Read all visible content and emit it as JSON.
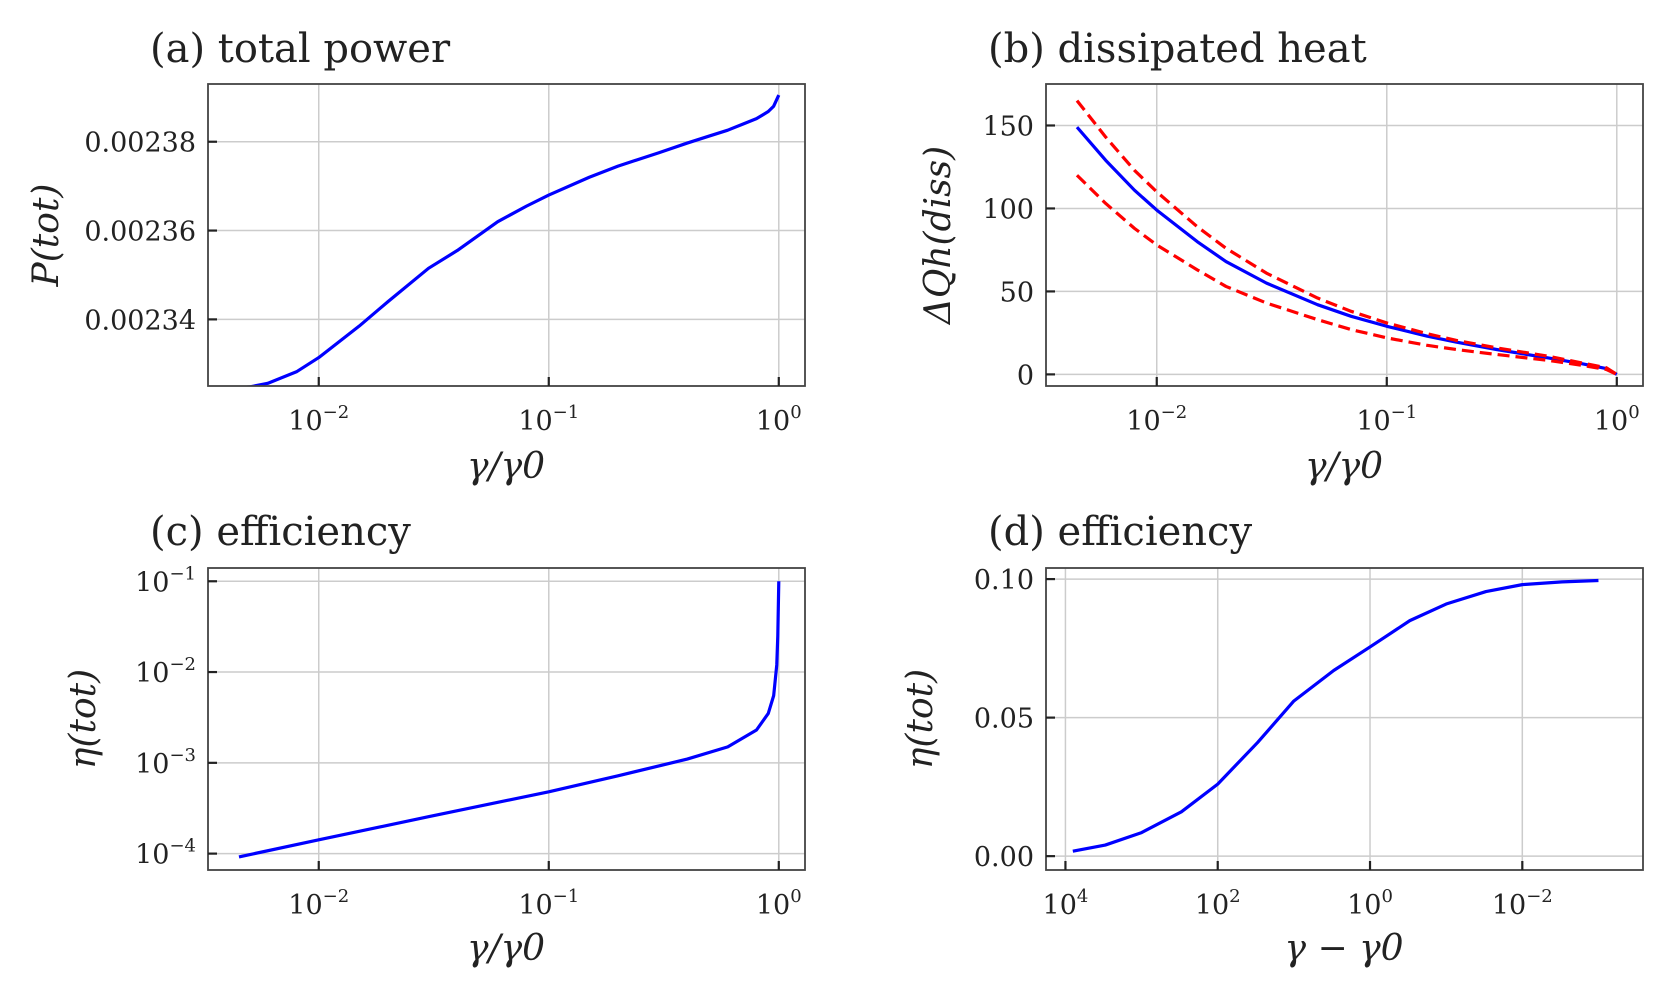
{
  "figure": {
    "colors": {
      "primary": "#0000ff",
      "bound": "#ff0000",
      "grid": "#cccccc",
      "frame": "#444444"
    }
  },
  "chart_data": [
    {
      "id": "a",
      "type": "line",
      "title": "(a) total power",
      "xlabel": "γ/γ0",
      "ylabel": "P(tot)",
      "xscale": "log",
      "xlim": [
        0.0033,
        1.3
      ],
      "ylim": [
        0.002325,
        0.002393
      ],
      "xticks": [
        0.01,
        0.1,
        1
      ],
      "xtick_labels": [
        {
          "base": "10",
          "exp": "−2"
        },
        {
          "base": "10",
          "exp": "−1"
        },
        {
          "base": "10",
          "exp": "0"
        }
      ],
      "yticks": [
        0.00234,
        0.00236,
        0.00238
      ],
      "ytick_labels": [
        "0.00234",
        "0.00236",
        "0.00238"
      ],
      "grid": true,
      "series": [
        {
          "name": "total power",
          "color": "#0000ff",
          "style": "solid",
          "x": [
            0.0045,
            0.005,
            0.006,
            0.008,
            0.01,
            0.015,
            0.02,
            0.03,
            0.04,
            0.06,
            0.08,
            0.1,
            0.15,
            0.2,
            0.3,
            0.4,
            0.5,
            0.6,
            0.7,
            0.8,
            0.9,
            0.95,
            1.0
          ],
          "y": [
            0.0023246,
            0.0023248,
            0.0023256,
            0.0023282,
            0.0023314,
            0.0023385,
            0.002344,
            0.0023515,
            0.0023555,
            0.002362,
            0.0023655,
            0.002368,
            0.002372,
            0.0023745,
            0.0023775,
            0.0023797,
            0.0023813,
            0.0023826,
            0.002384,
            0.0023852,
            0.0023868,
            0.002388,
            0.0023905
          ]
        }
      ]
    },
    {
      "id": "b",
      "type": "line",
      "title": "(b) dissipated heat",
      "xlabel": "γ/γ0",
      "ylabel": "ΔQh(diss)",
      "xscale": "log",
      "xlim": [
        0.0033,
        1.3
      ],
      "ylim": [
        -7,
        175
      ],
      "xticks": [
        0.01,
        0.1,
        1
      ],
      "xtick_labels": [
        {
          "base": "10",
          "exp": "−2"
        },
        {
          "base": "10",
          "exp": "−1"
        },
        {
          "base": "10",
          "exp": "0"
        }
      ],
      "yticks": [
        0,
        50,
        100,
        150
      ],
      "ytick_labels": [
        "0",
        "50",
        "100",
        "150"
      ],
      "grid": true,
      "series": [
        {
          "name": "dissipated heat",
          "color": "#0000ff",
          "style": "solid",
          "x": [
            0.0045,
            0.006,
            0.008,
            0.01,
            0.015,
            0.02,
            0.03,
            0.05,
            0.07,
            0.1,
            0.15,
            0.2,
            0.3,
            0.5,
            0.7,
            0.9,
            1.0
          ],
          "y": [
            149,
            129,
            111,
            99,
            80,
            68,
            55,
            42,
            35,
            29,
            23,
            19.5,
            15,
            10,
            6.5,
            3.5,
            0
          ]
        },
        {
          "name": "upper bound",
          "color": "#ff0000",
          "style": "dashed",
          "x": [
            0.0045,
            0.006,
            0.008,
            0.01,
            0.015,
            0.02,
            0.03,
            0.05,
            0.07,
            0.1,
            0.15,
            0.2,
            0.3,
            0.5,
            0.7,
            0.9,
            1.0
          ],
          "y": [
            165,
            143,
            123,
            110,
            89,
            76,
            61,
            46,
            38,
            31,
            24.5,
            20.5,
            16,
            11,
            7,
            4,
            0
          ]
        },
        {
          "name": "lower bound",
          "color": "#ff0000",
          "style": "dashed",
          "x": [
            0.0045,
            0.006,
            0.008,
            0.01,
            0.015,
            0.02,
            0.03,
            0.05,
            0.07,
            0.1,
            0.15,
            0.2,
            0.3,
            0.5,
            0.7,
            0.9,
            1.0
          ],
          "y": [
            120,
            103,
            88,
            78,
            63,
            53,
            43,
            33,
            27,
            22,
            17.5,
            15,
            12,
            8.5,
            5.5,
            3,
            0
          ]
        }
      ]
    },
    {
      "id": "c",
      "type": "line",
      "title": "(c) efficiency",
      "xlabel": "γ/γ0",
      "ylabel": "η(tot)",
      "xscale": "log",
      "yscale": "log",
      "xlim": [
        0.0033,
        1.3
      ],
      "ylim": [
        6.6e-05,
        0.14
      ],
      "xticks": [
        0.01,
        0.1,
        1
      ],
      "xtick_labels": [
        {
          "base": "10",
          "exp": "−2"
        },
        {
          "base": "10",
          "exp": "−1"
        },
        {
          "base": "10",
          "exp": "0"
        }
      ],
      "yticks": [
        0.0001,
        0.001,
        0.01,
        0.1
      ],
      "ytick_labels": [
        {
          "base": "10",
          "exp": "−4"
        },
        {
          "base": "10",
          "exp": "−3"
        },
        {
          "base": "10",
          "exp": "−2"
        },
        {
          "base": "10",
          "exp": "−1"
        }
      ],
      "grid": true,
      "series": [
        {
          "name": "efficiency",
          "color": "#0000ff",
          "style": "solid",
          "x": [
            0.0045,
            0.01,
            0.03,
            0.1,
            0.2,
            0.4,
            0.6,
            0.8,
            0.9,
            0.95,
            0.98,
            0.99,
            0.995,
            1.0
          ],
          "y": [
            9.2e-05,
            0.000142,
            0.000255,
            0.00048,
            0.00072,
            0.0011,
            0.0015,
            0.0023,
            0.0035,
            0.0055,
            0.012,
            0.025,
            0.05,
            0.1
          ]
        }
      ]
    },
    {
      "id": "d",
      "type": "line",
      "title": "(d) efficiency",
      "xlabel": "γ − γ0",
      "ylabel": "η(tot)",
      "xscale": "log",
      "xdirection": "reversed",
      "xlim": [
        18000,
        0.00026
      ],
      "ylim": [
        -0.005,
        0.104
      ],
      "xticks": [
        10000,
        100,
        1,
        0.01
      ],
      "xtick_labels": [
        {
          "base": "10",
          "exp": "4"
        },
        {
          "base": "10",
          "exp": "2"
        },
        {
          "base": "10",
          "exp": "0"
        },
        {
          "base": "10",
          "exp": "−2"
        }
      ],
      "yticks": [
        0,
        0.05,
        0.1
      ],
      "ytick_labels": [
        "0.00",
        "0.05",
        "0.10"
      ],
      "grid": true,
      "series": [
        {
          "name": "efficiency",
          "color": "#0000ff",
          "style": "solid",
          "x": [
            8000,
            3000,
            1000,
            300,
            100,
            30,
            10,
            3,
            1,
            0.3,
            0.1,
            0.03,
            0.01,
            0.003,
            0.001
          ],
          "y": [
            0.0018,
            0.004,
            0.0085,
            0.016,
            0.026,
            0.041,
            0.056,
            0.067,
            0.0755,
            0.085,
            0.091,
            0.0955,
            0.098,
            0.099,
            0.0995
          ]
        }
      ]
    }
  ]
}
